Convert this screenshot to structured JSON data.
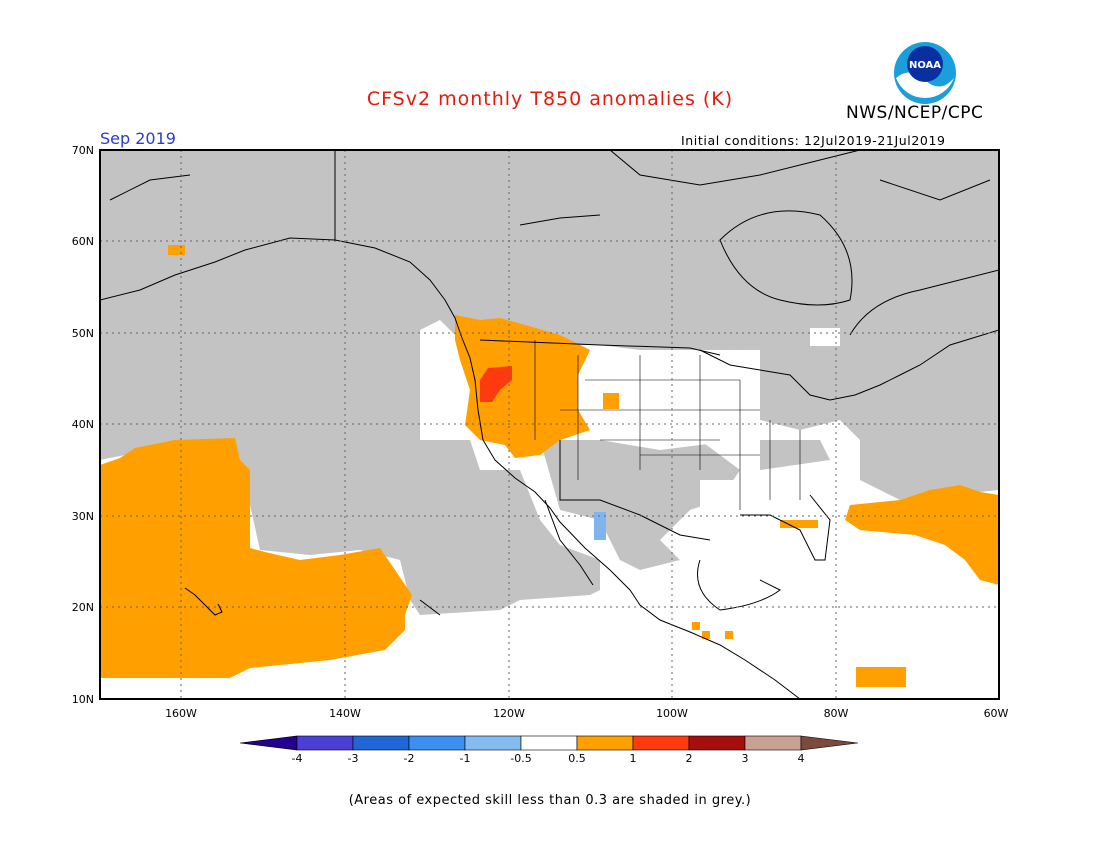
{
  "header": {
    "title": "CFSv2 monthly T850 anomalies (K)",
    "agency": "NWS/NCEP/CPC",
    "logo_text": "NOAA",
    "month": "Sep 2019",
    "initial_conditions": "Initial conditions: 12Jul2019-21Jul2019"
  },
  "map": {
    "lat_labels": [
      "70N",
      "60N",
      "50N",
      "40N",
      "30N",
      "20N",
      "10N"
    ],
    "lon_labels": [
      "160W",
      "140W",
      "120W",
      "100W",
      "80W",
      "60W"
    ],
    "lat_range": [
      10,
      70
    ],
    "lon_range": [
      -170,
      -60
    ],
    "grey_meaning": "low skill",
    "colors": {
      "grey": "#c3c3c3",
      "anom_05_1": "#ff9f00",
      "anom_1_2": "#ff3a0e",
      "positive_weak": "#ff9f00",
      "negative_weak": "#7fb4ef",
      "no_signal": "#ffffff"
    }
  },
  "colorbar": {
    "tick_labels": [
      "-4",
      "-3",
      "-2",
      "-1",
      "-0.5",
      "0.5",
      "1",
      "2",
      "3",
      "4"
    ],
    "colors": [
      "#24008f",
      "#4b3fd6",
      "#1f66d6",
      "#3b8ff0",
      "#84bcef",
      "#ffffff",
      "#ff9f00",
      "#ff3a0e",
      "#a70e0e",
      "#c8a193",
      "#7a4a3d"
    ]
  },
  "footnote": "(Areas of expected skill less than 0.3 are shaded in grey.)"
}
